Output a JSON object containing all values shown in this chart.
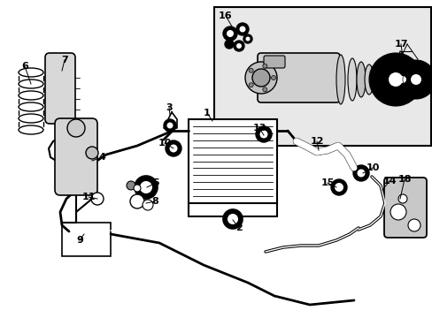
{
  "background_color": "#ffffff",
  "line_color": "#000000",
  "text_color": "#000000",
  "inset_bg": "#e0e0e0",
  "fig_width": 4.89,
  "fig_height": 3.6,
  "dpi": 100
}
